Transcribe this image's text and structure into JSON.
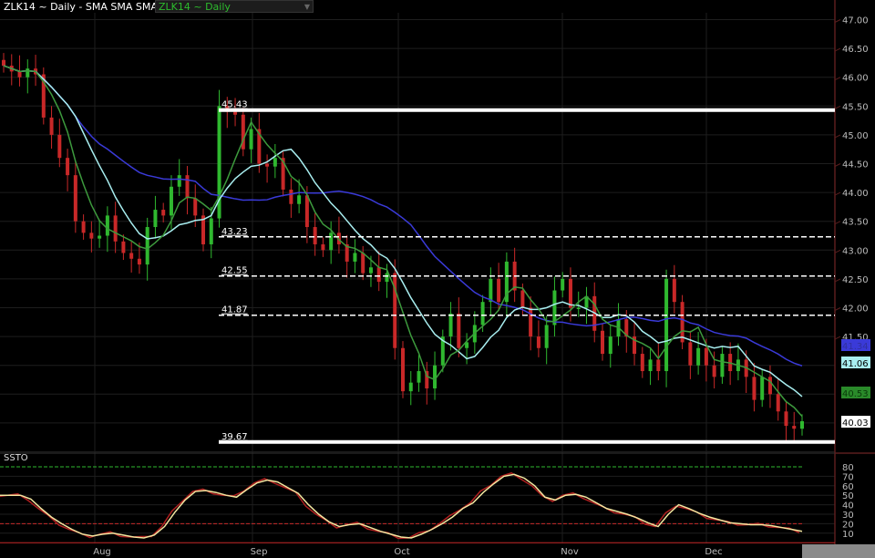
{
  "header": {
    "title": "ZLK14 ~ Daily",
    "separator": "-",
    "studies": "SMA SMA SMA",
    "symbol_select": "ZLK14 ~ Daily",
    "select_icon": "chevron-down-icon"
  },
  "colors": {
    "up": "#2fb82f",
    "down": "#c82828",
    "sma_fast": "#3d9a3d",
    "sma_mid": "#a8eef0",
    "sma_slow": "#3a3ad8",
    "level": "#ffffff",
    "axis": "#5a1e1e",
    "grid": "#1e1e1e",
    "ssto_k": "#f3e6a0",
    "ssto_d": "#b02020",
    "overbought": "#2fb82f",
    "oversold": "#c82828"
  },
  "chart_data": {
    "type": "candlestick",
    "price_axis": {
      "ticks": [
        "47.00",
        "46.50",
        "46.00",
        "45.50",
        "45.00",
        "44.50",
        "44.00",
        "43.50",
        "43.00",
        "42.50",
        "42.00",
        "41.50"
      ],
      "range": [
        39.5,
        47.0
      ]
    },
    "x_labels": [
      "Aug",
      "Sep",
      "Oct",
      "Nov",
      "Dec"
    ],
    "closes": [
      46.2,
      46.1,
      46.0,
      46.15,
      46.05,
      45.3,
      45.0,
      44.6,
      44.3,
      43.5,
      43.3,
      43.2,
      43.25,
      43.6,
      43.15,
      42.95,
      42.85,
      42.75,
      43.4,
      43.7,
      43.6,
      44.1,
      44.3,
      43.9,
      43.6,
      43.1,
      43.55,
      45.5,
      45.4,
      45.35,
      44.75,
      45.1,
      44.5,
      44.45,
      44.6,
      44.05,
      43.8,
      43.95,
      43.4,
      43.1,
      43.0,
      43.3,
      43.1,
      42.8,
      42.95,
      42.6,
      42.7,
      42.45,
      42.6,
      41.3,
      40.55,
      40.7,
      40.9,
      40.6,
      41.0,
      41.5,
      41.9,
      41.3,
      41.4,
      41.7,
      42.1,
      42.5,
      42.1,
      42.8,
      42.3,
      42.0,
      41.5,
      41.3,
      41.7,
      42.3,
      42.5,
      42.0,
      42.0,
      42.2,
      41.6,
      41.2,
      41.5,
      41.8,
      41.5,
      41.2,
      40.9,
      41.1,
      40.9,
      42.5,
      42.1,
      41.4,
      41.0,
      41.3,
      41.0,
      40.8,
      41.2,
      40.9,
      41.1,
      40.8,
      40.4,
      40.8,
      40.5,
      40.2,
      39.95,
      39.9,
      40.03
    ],
    "levels": [
      {
        "label": "45.43",
        "value": 45.43,
        "style": "solid"
      },
      {
        "label": "43.23",
        "value": 43.23,
        "style": "dashed"
      },
      {
        "label": "42.55",
        "value": 42.55,
        "style": "dashed"
      },
      {
        "label": "41.87",
        "value": 41.87,
        "style": "dashed"
      },
      {
        "label": "39.67",
        "value": 39.67,
        "style": "solid"
      }
    ],
    "last_values": {
      "sma_slow": "41.34",
      "sma_mid": "41.06",
      "sma_fast": "40.53",
      "price": "40.03"
    },
    "oscillator": {
      "name": "SSTO",
      "ticks": [
        "80",
        "70",
        "60",
        "50",
        "40",
        "30",
        "20",
        "10"
      ],
      "range": [
        0,
        80
      ],
      "overbought": 80,
      "oversold": 20,
      "k": [
        50,
        50,
        50,
        46,
        36,
        27,
        20,
        14,
        9,
        7,
        9,
        10,
        8,
        6,
        5,
        8,
        17,
        32,
        45,
        54,
        55,
        53,
        50,
        48,
        56,
        63,
        66,
        64,
        58,
        52,
        40,
        30,
        22,
        17,
        19,
        20,
        16,
        12,
        9,
        6,
        5,
        9,
        14,
        20,
        27,
        36,
        42,
        53,
        62,
        70,
        72,
        68,
        60,
        48,
        45,
        50,
        51,
        48,
        42,
        36,
        33,
        30,
        26,
        21,
        17,
        30,
        40,
        36,
        31,
        27,
        24,
        21,
        20,
        19,
        19,
        18,
        16,
        14,
        12
      ]
    }
  }
}
